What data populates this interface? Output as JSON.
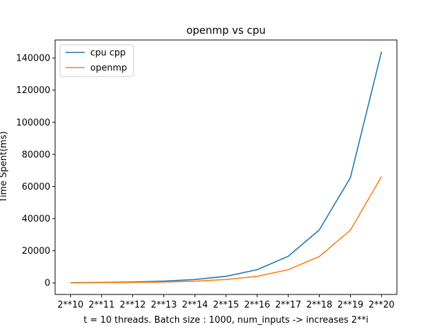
{
  "chart_data": {
    "type": "line",
    "title": "openmp vs cpu",
    "xlabel": "t = 10 threads. Batch size : 1000, num_inputs -> increases 2**i",
    "ylabel": "Time Spent(ms)",
    "categories": [
      "2**10",
      "2**11",
      "2**12",
      "2**13",
      "2**14",
      "2**15",
      "2**16",
      "2**17",
      "2**18",
      "2**19",
      "2**20"
    ],
    "ylim": [
      -7200,
      151200
    ],
    "yticks": [
      0,
      20000,
      40000,
      60000,
      80000,
      100000,
      120000,
      140000
    ],
    "grid": false,
    "legend_position": "top-left",
    "series": [
      {
        "name": "cpu cpp",
        "color": "#1f77b4",
        "values": [
          140,
          270,
          550,
          1100,
          2100,
          4100,
          8200,
          16600,
          33000,
          65500,
          144000
        ]
      },
      {
        "name": "openmp",
        "color": "#ff7f0e",
        "values": [
          60,
          130,
          260,
          520,
          1050,
          2100,
          4100,
          8200,
          16400,
          32800,
          66200
        ]
      }
    ]
  }
}
